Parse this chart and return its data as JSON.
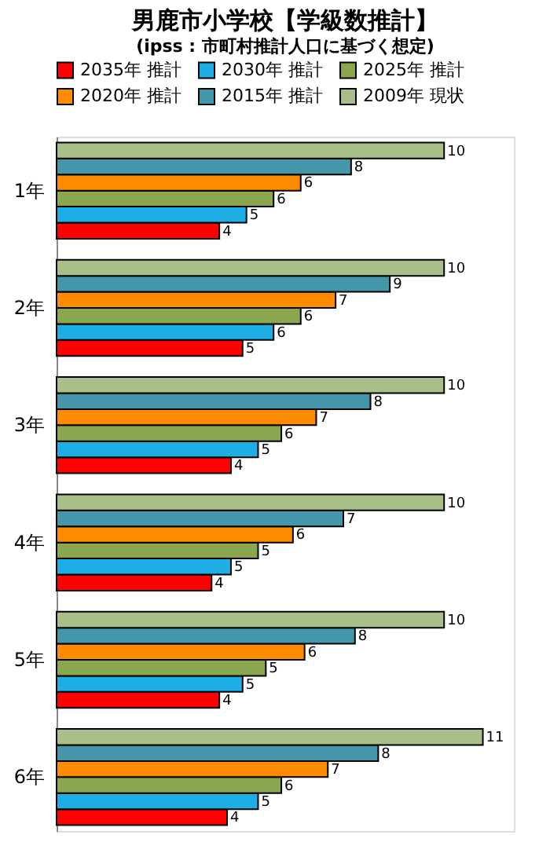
{
  "chart_data": {
    "type": "bar",
    "orientation": "horizontal",
    "title": "男鹿市小学校【学級数推計】",
    "subtitle": "(ipss : 市町村推計人口に基づく想定)",
    "categories": [
      "1年",
      "2年",
      "3年",
      "4年",
      "5年",
      "6年"
    ],
    "series": [
      {
        "name": "2035年 推計",
        "color": "#ff0000",
        "values": [
          4.2,
          4.8,
          4.5,
          4.0,
          4.2,
          4.4
        ],
        "value_labels": [
          "4",
          "5",
          "4",
          "4",
          "4",
          "4"
        ]
      },
      {
        "name": "2030年 推計",
        "color": "#1eaee6",
        "values": [
          4.9,
          5.6,
          5.2,
          4.5,
          4.8,
          5.2
        ],
        "value_labels": [
          "5",
          "6",
          "5",
          "5",
          "5",
          "5"
        ]
      },
      {
        "name": "2025年 推計",
        "color": "#8aa64e",
        "values": [
          5.6,
          6.3,
          5.8,
          5.2,
          5.4,
          5.8
        ],
        "value_labels": [
          "6",
          "6",
          "6",
          "5",
          "5",
          "6"
        ]
      },
      {
        "name": "2020年 推計",
        "color": "#ff8c00",
        "values": [
          6.3,
          7.2,
          6.7,
          6.1,
          6.4,
          7.0
        ],
        "value_labels": [
          "6",
          "7",
          "7",
          "6",
          "6",
          "7"
        ]
      },
      {
        "name": "2015年 推計",
        "color": "#4497ab",
        "values": [
          7.6,
          8.6,
          8.1,
          7.4,
          7.7,
          8.3
        ],
        "value_labels": [
          "8",
          "9",
          "8",
          "7",
          "8",
          "8"
        ]
      },
      {
        "name": "2009年 現状",
        "color": "#a8c088",
        "values": [
          10,
          10,
          10,
          10,
          10,
          11
        ],
        "value_labels": [
          "10",
          "10",
          "10",
          "10",
          "10",
          "11"
        ]
      }
    ],
    "xlim": [
      0,
      11.8
    ],
    "tick_labels": "y",
    "grid": false,
    "legend": "top"
  }
}
